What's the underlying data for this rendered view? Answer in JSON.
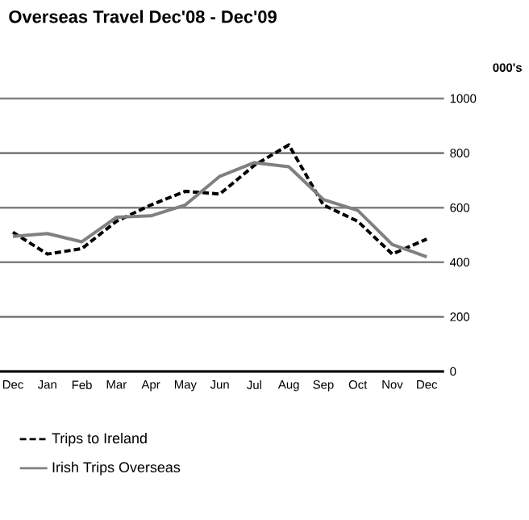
{
  "chart_data": {
    "type": "line",
    "title": "Overseas Travel Dec'08 - Dec'09",
    "ylabel": "000's",
    "categories": [
      "Dec",
      "Jan",
      "Feb",
      "Mar",
      "Apr",
      "May",
      "Jun",
      "Jul",
      "Aug",
      "Sep",
      "Oct",
      "Nov",
      "Dec"
    ],
    "series": [
      {
        "name": "Trips to Ireland",
        "color": "#000000",
        "line_style": "dashed",
        "values": [
          510,
          430,
          450,
          550,
          610,
          660,
          650,
          755,
          830,
          610,
          550,
          430,
          485
        ]
      },
      {
        "name": "Irish Trips Overseas",
        "color": "#808080",
        "line_style": "solid",
        "values": [
          495,
          505,
          475,
          565,
          570,
          610,
          715,
          765,
          750,
          630,
          590,
          465,
          420
        ]
      }
    ],
    "ylim": [
      0,
      1000
    ],
    "yticks": [
      0,
      200,
      400,
      600,
      800,
      1000
    ],
    "grid": "y",
    "legend": "bottom left"
  }
}
